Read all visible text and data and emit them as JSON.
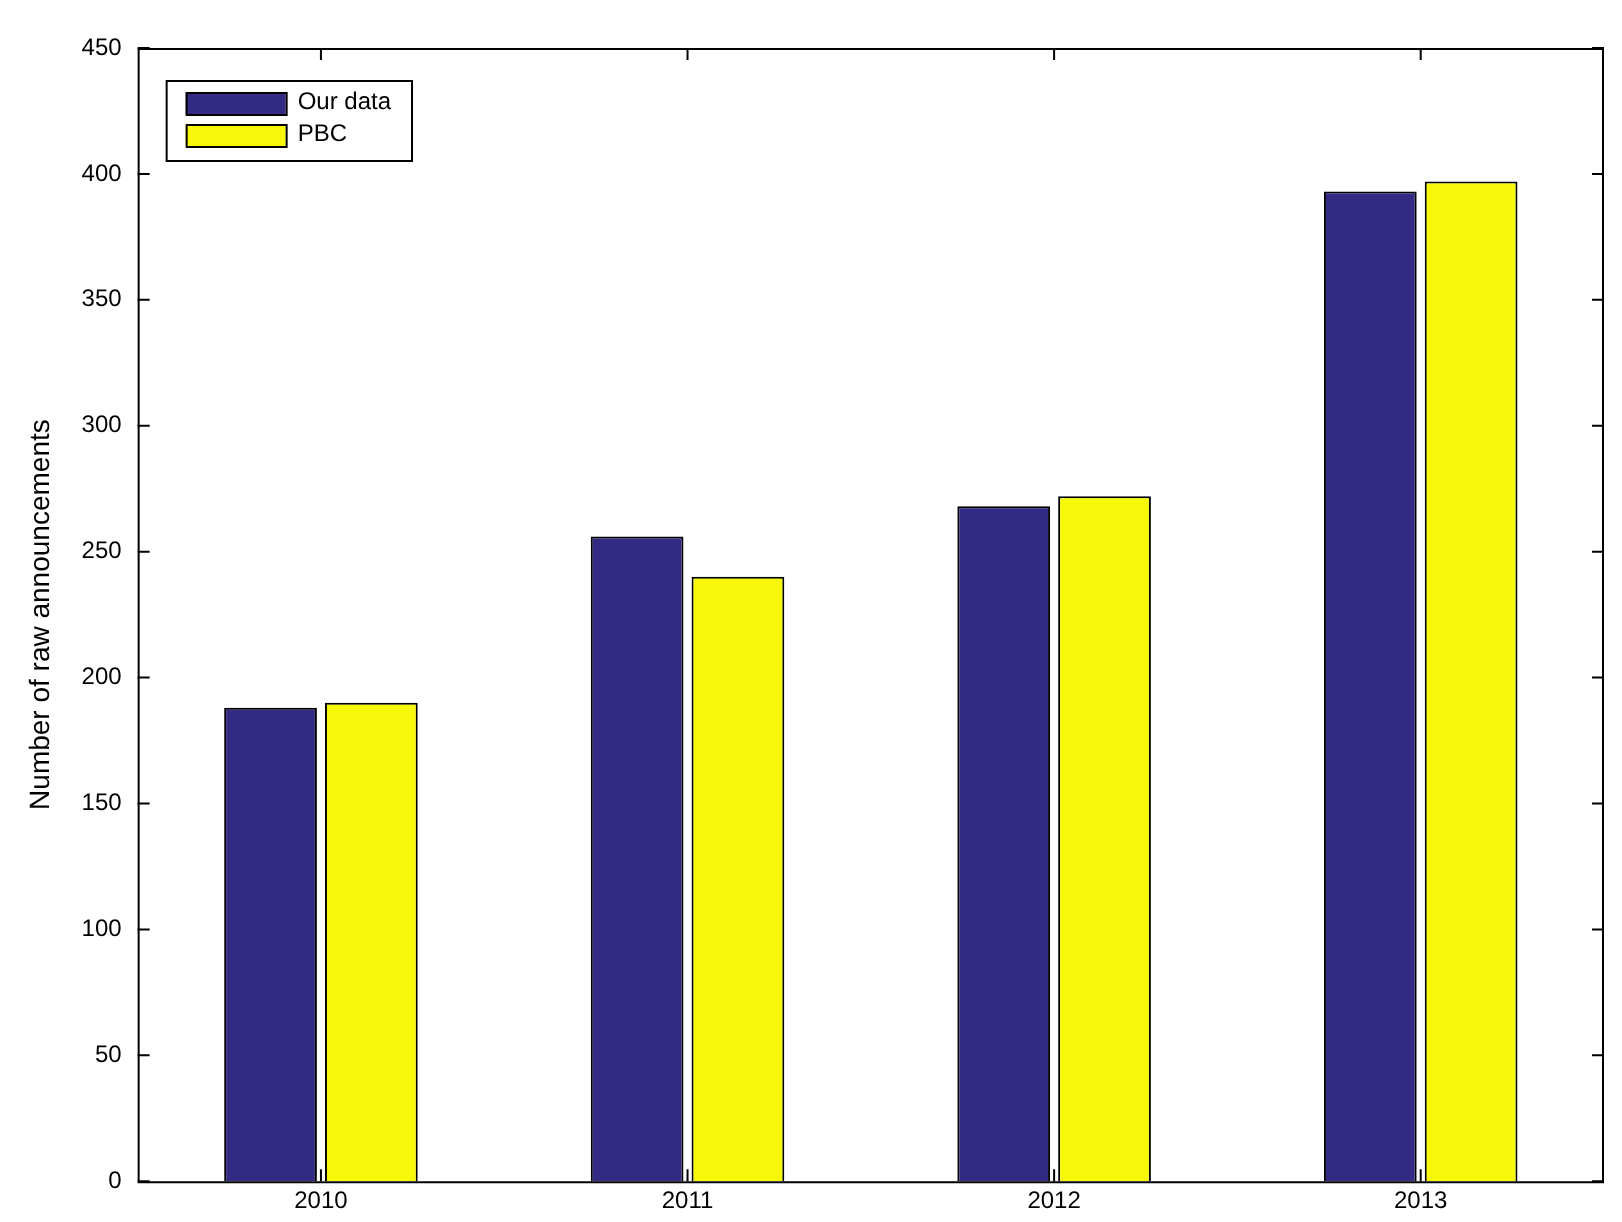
{
  "chart_data": {
    "type": "bar",
    "ylabel": "Number of raw announcements",
    "categories": [
      "2010",
      "2011",
      "2012",
      "2013"
    ],
    "series": [
      {
        "name": "Our data",
        "color": "#332a83",
        "values": [
          188,
          256,
          268,
          393
        ]
      },
      {
        "name": "PBC",
        "color": "#f7f70a",
        "values": [
          190,
          240,
          272,
          397
        ]
      }
    ],
    "ylim": [
      0,
      450
    ],
    "yticks": [
      0,
      50,
      100,
      150,
      200,
      250,
      300,
      350,
      400,
      450
    ],
    "grid": false,
    "legend": "top left"
  }
}
